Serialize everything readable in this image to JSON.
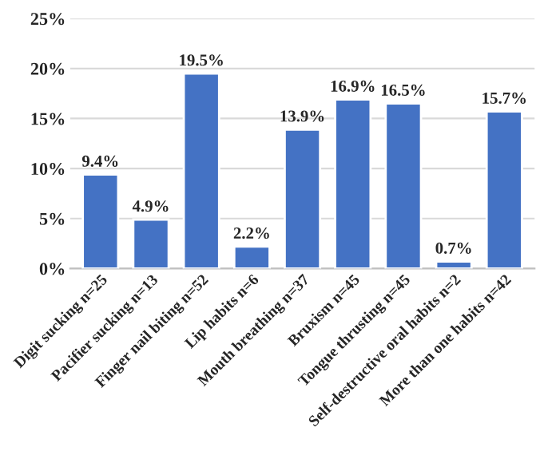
{
  "chart_data": {
    "type": "bar",
    "categories": [
      "Digit sucking n=25",
      "Pacifier sucking n=13",
      "Finger nail biting n=52",
      "Lip habits n=6",
      "Mouth breathing n=37",
      "Bruxism n=45",
      "Tongue thrusting n=45",
      "Self-destructive oral habits n=2",
      "More than one habits n=42"
    ],
    "values": [
      9.4,
      4.9,
      19.5,
      2.2,
      13.9,
      16.9,
      16.5,
      0.7,
      15.7
    ],
    "value_labels": [
      "9.4%",
      "4.9%",
      "19.5%",
      "2.2%",
      "13.9%",
      "16.9%",
      "16.5%",
      "0.7%",
      "15.7%"
    ],
    "color": "#4472c4",
    "ylim": [
      0,
      25
    ],
    "yticks": [
      {
        "value": 0,
        "label": "0%"
      },
      {
        "value": 5,
        "label": "5%"
      },
      {
        "value": 10,
        "label": "10%"
      },
      {
        "value": 15,
        "label": "15%"
      },
      {
        "value": 20,
        "label": "20%"
      },
      {
        "value": 25,
        "label": "25%"
      }
    ],
    "grid": "y",
    "legend": false
  }
}
